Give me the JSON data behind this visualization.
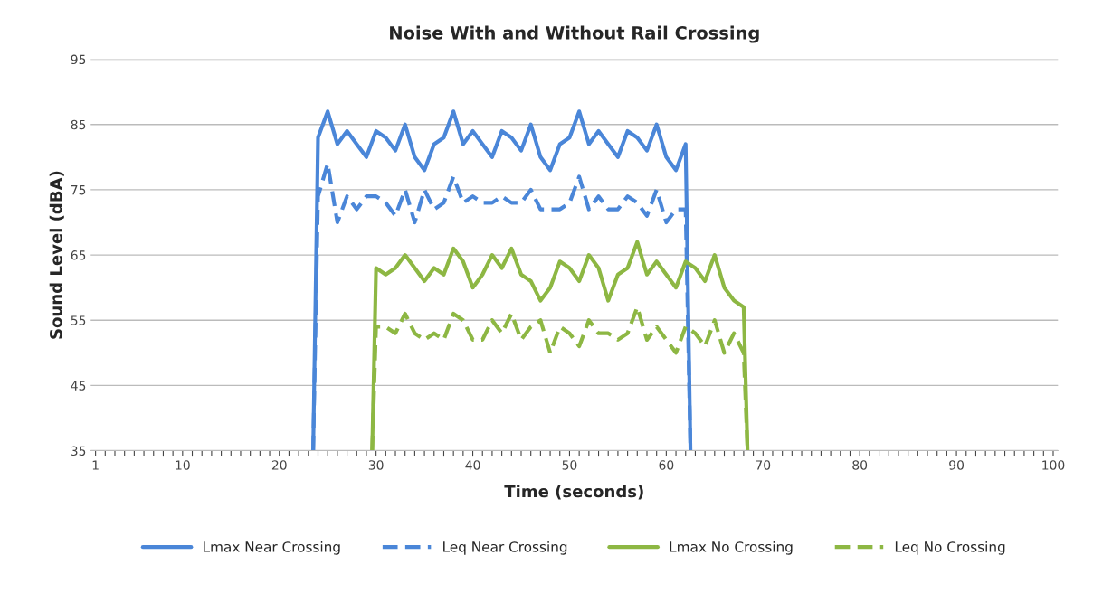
{
  "chart_data": {
    "type": "line",
    "title": "Noise With and Without Rail Crossing",
    "xlabel": "Time (seconds)",
    "ylabel": "Sound Level (dBA)",
    "xlim": [
      0.5,
      100.5
    ],
    "ylim": [
      35,
      95
    ],
    "yticks": [
      35,
      45,
      55,
      65,
      75,
      85,
      95
    ],
    "xticks": [
      1,
      {
        "value": 2,
        "label": null
      },
      {
        "value": 3,
        "label": null
      },
      {
        "value": 4,
        "label": null
      },
      {
        "value": 5,
        "label": null
      },
      {
        "value": 6,
        "label": null
      },
      {
        "value": 7,
        "label": null
      },
      {
        "value": 8,
        "label": null
      },
      {
        "value": 9,
        "label": null
      },
      10,
      {
        "value": 11,
        "label": null
      },
      {
        "value": 12,
        "label": null
      },
      {
        "value": 13,
        "label": null
      },
      {
        "value": 14,
        "label": null
      },
      {
        "value": 15,
        "label": null
      },
      {
        "value": 16,
        "label": null
      },
      {
        "value": 17,
        "label": null
      },
      {
        "value": 18,
        "label": null
      },
      {
        "value": 19,
        "label": null
      },
      20,
      {
        "value": 21,
        "label": null
      },
      {
        "value": 22,
        "label": null
      },
      {
        "value": 23,
        "label": null
      },
      {
        "value": 24,
        "label": null
      },
      {
        "value": 25,
        "label": null
      },
      {
        "value": 26,
        "label": null
      },
      {
        "value": 27,
        "label": null
      },
      {
        "value": 28,
        "label": null
      },
      {
        "value": 29,
        "label": null
      },
      30,
      {
        "value": 31,
        "label": null
      },
      {
        "value": 32,
        "label": null
      },
      {
        "value": 33,
        "label": null
      },
      {
        "value": 34,
        "label": null
      },
      {
        "value": 35,
        "label": null
      },
      {
        "value": 36,
        "label": null
      },
      {
        "value": 37,
        "label": null
      },
      {
        "value": 38,
        "label": null
      },
      {
        "value": 39,
        "label": null
      },
      40,
      {
        "value": 41,
        "label": null
      },
      {
        "value": 42,
        "label": null
      },
      {
        "value": 43,
        "label": null
      },
      {
        "value": 44,
        "label": null
      },
      {
        "value": 45,
        "label": null
      },
      {
        "value": 46,
        "label": null
      },
      {
        "value": 47,
        "label": null
      },
      {
        "value": 48,
        "label": null
      },
      {
        "value": 49,
        "label": null
      },
      50,
      {
        "value": 51,
        "label": null
      },
      {
        "value": 52,
        "label": null
      },
      {
        "value": 53,
        "label": null
      },
      {
        "value": 54,
        "label": null
      },
      {
        "value": 55,
        "label": null
      },
      {
        "value": 56,
        "label": null
      },
      {
        "value": 57,
        "label": null
      },
      {
        "value": 58,
        "label": null
      },
      {
        "value": 59,
        "label": null
      },
      60,
      {
        "value": 61,
        "label": null
      },
      {
        "value": 62,
        "label": null
      },
      {
        "value": 63,
        "label": null
      },
      {
        "value": 64,
        "label": null
      },
      {
        "value": 65,
        "label": null
      },
      {
        "value": 66,
        "label": null
      },
      {
        "value": 67,
        "label": null
      },
      {
        "value": 68,
        "label": null
      },
      {
        "value": 69,
        "label": null
      },
      70,
      {
        "value": 71,
        "label": null
      },
      {
        "value": 72,
        "label": null
      },
      {
        "value": 73,
        "label": null
      },
      {
        "value": 74,
        "label": null
      },
      {
        "value": 75,
        "label": null
      },
      {
        "value": 76,
        "label": null
      },
      {
        "value": 77,
        "label": null
      },
      {
        "value": 78,
        "label": null
      },
      {
        "value": 79,
        "label": null
      },
      80,
      {
        "value": 81,
        "label": null
      },
      {
        "value": 82,
        "label": null
      },
      {
        "value": 83,
        "label": null
      },
      {
        "value": 84,
        "label": null
      },
      {
        "value": 85,
        "label": null
      },
      {
        "value": 86,
        "label": null
      },
      {
        "value": 87,
        "label": null
      },
      {
        "value": 88,
        "label": null
      },
      {
        "value": 89,
        "label": null
      },
      90,
      {
        "value": 91,
        "label": null
      },
      {
        "value": 92,
        "label": null
      },
      {
        "value": 93,
        "label": null
      },
      {
        "value": 94,
        "label": null
      },
      {
        "value": 95,
        "label": null
      },
      {
        "value": 96,
        "label": null
      },
      {
        "value": 97,
        "label": null
      },
      {
        "value": 98,
        "label": null
      },
      {
        "value": 99,
        "label": null
      },
      100
    ],
    "grid": "y",
    "legend": "bottom",
    "series": [
      {
        "name": "Lmax Near Crossing",
        "color": "#4a86d8",
        "line_style": "solid",
        "x": [
          23.5,
          24,
          25,
          26,
          27,
          28,
          29,
          30,
          31,
          32,
          33,
          34,
          35,
          36,
          37,
          38,
          39,
          40,
          41,
          42,
          43,
          44,
          45,
          46,
          47,
          48,
          49,
          50,
          51,
          52,
          53,
          54,
          55,
          56,
          57,
          58,
          59,
          60,
          61,
          62,
          62.5
        ],
        "values": [
          35,
          83,
          87,
          82,
          84,
          82,
          80,
          84,
          83,
          81,
          85,
          80,
          78,
          82,
          83,
          87,
          82,
          84,
          82,
          80,
          84,
          83,
          81,
          85,
          80,
          78,
          82,
          83,
          87,
          82,
          84,
          82,
          80,
          84,
          83,
          81,
          85,
          80,
          78,
          82,
          35
        ]
      },
      {
        "name": "Leq Near Crossing",
        "color": "#4a86d8",
        "line_style": "dashed",
        "x": [
          23.5,
          24,
          25,
          26,
          27,
          28,
          29,
          30,
          31,
          32,
          33,
          34,
          35,
          36,
          37,
          38,
          39,
          40,
          41,
          42,
          43,
          44,
          45,
          46,
          47,
          48,
          49,
          50,
          51,
          52,
          53,
          54,
          55,
          56,
          57,
          58,
          59,
          60,
          61,
          62,
          62.5
        ],
        "values": [
          35,
          74,
          79,
          70,
          74,
          72,
          74,
          74,
          73,
          71,
          75,
          70,
          75,
          72,
          73,
          77,
          73,
          74,
          73,
          73,
          74,
          73,
          73,
          75,
          72,
          72,
          72,
          73,
          77,
          72,
          74,
          72,
          72,
          74,
          73,
          71,
          75,
          70,
          72,
          72,
          35
        ]
      },
      {
        "name": "Lmax No Crossing",
        "color": "#8db743",
        "line_style": "solid",
        "x": [
          29.6,
          30,
          31,
          32,
          33,
          34,
          35,
          36,
          37,
          38,
          39,
          40,
          41,
          42,
          43,
          44,
          45,
          46,
          47,
          48,
          49,
          50,
          51,
          52,
          53,
          54,
          55,
          56,
          57,
          58,
          59,
          60,
          61,
          62,
          63,
          64,
          65,
          66,
          67,
          68,
          68.4
        ],
        "values": [
          35,
          63,
          62,
          63,
          65,
          63,
          61,
          63,
          62,
          66,
          64,
          60,
          62,
          65,
          63,
          66,
          62,
          61,
          58,
          60,
          64,
          63,
          61,
          65,
          63,
          58,
          62,
          63,
          67,
          62,
          64,
          62,
          60,
          64,
          63,
          61,
          65,
          60,
          58,
          57,
          35
        ]
      },
      {
        "name": "Leq No Crossing",
        "color": "#8db743",
        "line_style": "dashed",
        "x": [
          29.6,
          30,
          31,
          32,
          33,
          34,
          35,
          36,
          37,
          38,
          39,
          40,
          41,
          42,
          43,
          44,
          45,
          46,
          47,
          48,
          49,
          50,
          51,
          52,
          53,
          54,
          55,
          56,
          57,
          58,
          59,
          60,
          61,
          62,
          63,
          64,
          65,
          66,
          67,
          68,
          68.4
        ],
        "values": [
          35,
          54,
          54,
          53,
          56,
          53,
          52,
          53,
          52,
          56,
          55,
          52,
          52,
          55,
          53,
          56,
          52,
          54,
          55,
          50,
          54,
          53,
          51,
          55,
          53,
          53,
          52,
          53,
          57,
          52,
          54,
          52,
          50,
          54,
          53,
          51,
          55,
          50,
          53,
          50,
          35
        ]
      }
    ]
  }
}
